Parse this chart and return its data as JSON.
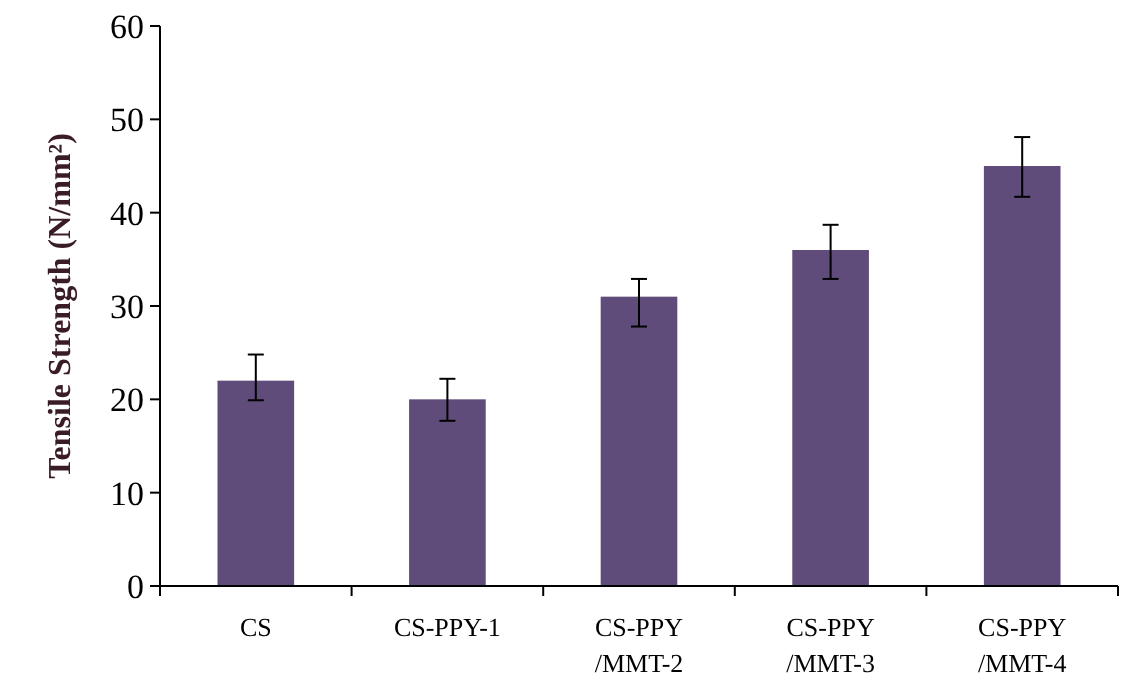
{
  "chart_data": {
    "type": "bar",
    "ylabel": "Tensile Strength (N/mm²)",
    "categories": [
      "CS",
      "CS-PPY-1",
      "CS-PPY\n/MMT-2",
      "CS-PPY\n/MMT-3",
      "CS-PPY\n/MMT-4"
    ],
    "values": [
      22,
      20,
      31,
      36,
      45
    ],
    "errors": [
      [
        19.9,
        24.8
      ],
      [
        17.7,
        22.2
      ],
      [
        27.8,
        32.9
      ],
      [
        32.9,
        38.7
      ],
      [
        41.7,
        48.1
      ]
    ],
    "color": "#604c7a",
    "ylim": [
      0,
      60
    ],
    "yticks": [
      0,
      10,
      20,
      30,
      40,
      50,
      60
    ],
    "grid": false
  }
}
